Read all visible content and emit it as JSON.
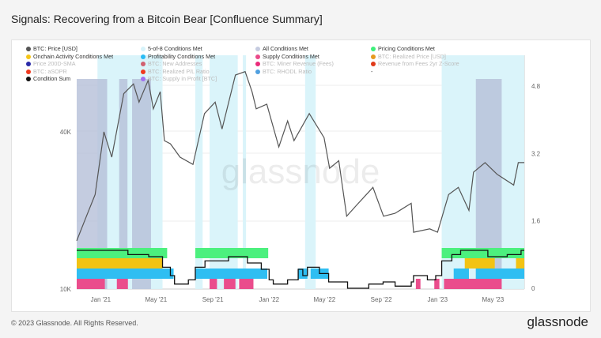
{
  "title": "Signals: Recovering from a Bitcoin Bear [Confluence Summary]",
  "footer": "© 2023 Glassnode. All Rights Reserved.",
  "brand": "glassnode",
  "watermark": "glassnode",
  "legend": [
    {
      "label": "BTC: Price [USD]",
      "color": "#555555",
      "active": true
    },
    {
      "label": "5-of-8 Conditions Met",
      "color": "#d6f3fa",
      "active": true
    },
    {
      "label": "All Conditions Met",
      "color": "#c5cbe0",
      "active": true
    },
    {
      "label": "Pricing Conditions Met",
      "color": "#3ef07a",
      "active": true
    },
    {
      "label": "Onchain Activity Conditions Met",
      "color": "#f5c518",
      "active": true
    },
    {
      "label": "Profitability Conditions Met",
      "color": "#2bbcf5",
      "active": true
    },
    {
      "label": "Supply Conditions Met",
      "color": "#ea4a8a",
      "active": true
    },
    {
      "label": "BTC: Realized Price [USD]",
      "color": "#e69a20",
      "active": false
    },
    {
      "label": "Price 200D-SMA",
      "color": "#2a2aa8",
      "active": false
    },
    {
      "label": "BTC: New Addresses",
      "color": "#d06070",
      "active": false
    },
    {
      "label": "BTC: Miner Revenue (Fees)",
      "color": "#ea2a7a",
      "active": false
    },
    {
      "label": "Revenue from Fees 2yr Z-Score",
      "color": "#e03a1a",
      "active": false
    },
    {
      "label": "BTC: aSOPR",
      "color": "#f03a20",
      "active": false
    },
    {
      "label": "BTC: Realized P/L Ratio",
      "color": "#f03a20",
      "active": false
    },
    {
      "label": "BTC: RHODL Ratio",
      "color": "#50a0e0",
      "active": false
    },
    {
      "label": "-",
      "color": "",
      "active": true
    },
    {
      "label": "Condition Sum",
      "color": "#111111",
      "active": true
    },
    {
      "label": "BTC: Supply in Profit [BTC]",
      "color": "#a070f0",
      "active": false
    }
  ],
  "chart_data": {
    "type": "line",
    "title": "Signals: Recovering from a Bitcoin Bear [Confluence Summary]",
    "x_range": [
      "2020-11-10",
      "2023-07-08"
    ],
    "x_ticks": [
      "Jan '21",
      "May '21",
      "Sep '21",
      "Jan '22",
      "May '22",
      "Sep '22",
      "Jan '23",
      "May '23"
    ],
    "x_tick_dates": [
      "2021-01-01",
      "2021-05-01",
      "2021-09-01",
      "2022-01-01",
      "2022-05-01",
      "2022-09-01",
      "2023-01-01",
      "2023-05-01"
    ],
    "y_left": {
      "scale": "log",
      "ticks": [
        "10K",
        "40K"
      ],
      "tick_values": [
        10000,
        40000
      ]
    },
    "y_right": {
      "ticks": [
        "0",
        "1.6",
        "3.2",
        "4.8"
      ],
      "tick_values": [
        0,
        1.6,
        3.2,
        4.8
      ]
    },
    "price": [
      [
        "2020-11-10",
        15300
      ],
      [
        "2020-12-01",
        19000
      ],
      [
        "2020-12-20",
        23000
      ],
      [
        "2021-01-08",
        40000
      ],
      [
        "2021-01-25",
        32000
      ],
      [
        "2021-02-20",
        56000
      ],
      [
        "2021-03-13",
        61000
      ],
      [
        "2021-03-25",
        52000
      ],
      [
        "2021-04-14",
        63000
      ],
      [
        "2021-04-25",
        49000
      ],
      [
        "2021-05-10",
        57000
      ],
      [
        "2021-05-19",
        37000
      ],
      [
        "2021-06-01",
        36000
      ],
      [
        "2021-06-22",
        32000
      ],
      [
        "2021-07-20",
        30000
      ],
      [
        "2021-08-14",
        47000
      ],
      [
        "2021-09-06",
        52000
      ],
      [
        "2021-09-21",
        41000
      ],
      [
        "2021-10-20",
        66000
      ],
      [
        "2021-11-10",
        68000
      ],
      [
        "2021-11-25",
        57000
      ],
      [
        "2021-12-04",
        49000
      ],
      [
        "2021-12-27",
        51000
      ],
      [
        "2022-01-22",
        35000
      ],
      [
        "2022-02-10",
        44000
      ],
      [
        "2022-02-24",
        37000
      ],
      [
        "2022-03-29",
        47000
      ],
      [
        "2022-04-30",
        38000
      ],
      [
        "2022-05-12",
        29000
      ],
      [
        "2022-06-01",
        31000
      ],
      [
        "2022-06-18",
        19000
      ],
      [
        "2022-07-10",
        21000
      ],
      [
        "2022-08-14",
        24500
      ],
      [
        "2022-09-06",
        19000
      ],
      [
        "2022-10-01",
        19500
      ],
      [
        "2022-11-05",
        21300
      ],
      [
        "2022-11-10",
        16500
      ],
      [
        "2022-12-15",
        17000
      ],
      [
        "2023-01-01",
        16500
      ],
      [
        "2023-01-25",
        23000
      ],
      [
        "2023-02-15",
        24500
      ],
      [
        "2023-03-10",
        20000
      ],
      [
        "2023-03-20",
        28000
      ],
      [
        "2023-04-14",
        30500
      ],
      [
        "2023-05-10",
        27500
      ],
      [
        "2023-06-15",
        25000
      ],
      [
        "2023-06-25",
        30500
      ],
      [
        "2023-07-08",
        30500
      ]
    ],
    "five_of_eight": [
      [
        "2020-12-25",
        "2021-05-15"
      ],
      [
        "2021-07-25",
        "2021-08-10"
      ],
      [
        "2021-08-25",
        "2021-10-25"
      ],
      [
        "2021-11-05",
        "2021-11-12"
      ],
      [
        "2022-03-20",
        "2022-04-12"
      ],
      [
        "2023-01-10",
        "2023-07-08"
      ]
    ],
    "all_met": [
      [
        "2020-11-10",
        "2021-01-15"
      ],
      [
        "2021-02-10",
        "2021-02-28"
      ],
      [
        "2021-03-10",
        "2021-04-20"
      ],
      [
        "2023-03-25",
        "2023-05-20"
      ]
    ],
    "bands": [
      {
        "name": "Pricing",
        "color": "#4cf07e",
        "row": 3,
        "ranges": [
          [
            "2020-11-10",
            "2021-05-25"
          ],
          [
            "2021-07-25",
            "2021-12-30"
          ],
          [
            "2023-01-10",
            "2023-07-08"
          ]
        ]
      },
      {
        "name": "Onchain Activity",
        "color": "#f2c314",
        "row": 2,
        "ranges": [
          [
            "2020-11-10",
            "2021-05-15"
          ],
          [
            "2023-03-01",
            "2023-05-05"
          ],
          [
            "2023-06-20",
            "2023-07-08"
          ]
        ]
      },
      {
        "name": "Profitability",
        "color": "#2fbef2",
        "row": 1,
        "ranges": [
          [
            "2020-11-10",
            "2021-06-08"
          ],
          [
            "2021-07-25",
            "2021-12-28"
          ],
          [
            "2022-03-05",
            "2022-03-25"
          ],
          [
            "2022-04-01",
            "2022-05-10"
          ],
          [
            "2023-02-05",
            "2023-03-10"
          ],
          [
            "2023-03-25",
            "2023-07-08"
          ]
        ]
      },
      {
        "name": "Supply",
        "color": "#ea4d8c",
        "row": 0,
        "ranges": [
          [
            "2020-11-10",
            "2021-01-10"
          ],
          [
            "2021-02-05",
            "2021-03-01"
          ],
          [
            "2021-08-25",
            "2021-09-10"
          ],
          [
            "2021-09-25",
            "2021-10-20"
          ],
          [
            "2021-10-28",
            "2021-11-28"
          ],
          [
            "2022-11-15",
            "2022-11-25"
          ],
          [
            "2022-12-25",
            "2023-01-05"
          ],
          [
            "2023-01-15",
            "2023-05-20"
          ]
        ]
      }
    ],
    "condition_sum": [
      [
        "2020-11-10",
        0.9
      ],
      [
        "2021-02-15",
        0.9
      ],
      [
        "2021-03-01",
        0.8
      ],
      [
        "2021-04-15",
        0.75
      ],
      [
        "2021-05-15",
        0.5
      ],
      [
        "2021-06-01",
        0.3
      ],
      [
        "2021-06-10",
        0.1
      ],
      [
        "2021-07-10",
        0.2
      ],
      [
        "2021-07-25",
        0.5
      ],
      [
        "2021-08-15",
        0.65
      ],
      [
        "2021-10-05",
        0.75
      ],
      [
        "2021-11-15",
        0.6
      ],
      [
        "2021-12-15",
        0.45
      ],
      [
        "2022-01-01",
        0.2
      ],
      [
        "2022-01-10",
        0.1
      ],
      [
        "2022-02-10",
        0.2
      ],
      [
        "2022-03-05",
        0.45
      ],
      [
        "2022-03-15",
        0.3
      ],
      [
        "2022-03-25",
        0.5
      ],
      [
        "2022-04-20",
        0.35
      ],
      [
        "2022-05-10",
        0.15
      ],
      [
        "2022-06-20",
        0.0
      ],
      [
        "2022-08-05",
        0.1
      ],
      [
        "2022-09-05",
        0.15
      ],
      [
        "2022-10-01",
        0.05
      ],
      [
        "2022-11-05",
        0.15
      ],
      [
        "2022-11-10",
        0.3
      ],
      [
        "2022-12-10",
        0.2
      ],
      [
        "2022-12-28",
        0.3
      ],
      [
        "2023-01-10",
        0.65
      ],
      [
        "2023-02-01",
        0.8
      ],
      [
        "2023-02-20",
        0.9
      ],
      [
        "2023-04-20",
        0.75
      ],
      [
        "2023-06-01",
        0.8
      ],
      [
        "2023-07-01",
        0.9
      ],
      [
        "2023-07-08",
        0.9
      ]
    ]
  }
}
